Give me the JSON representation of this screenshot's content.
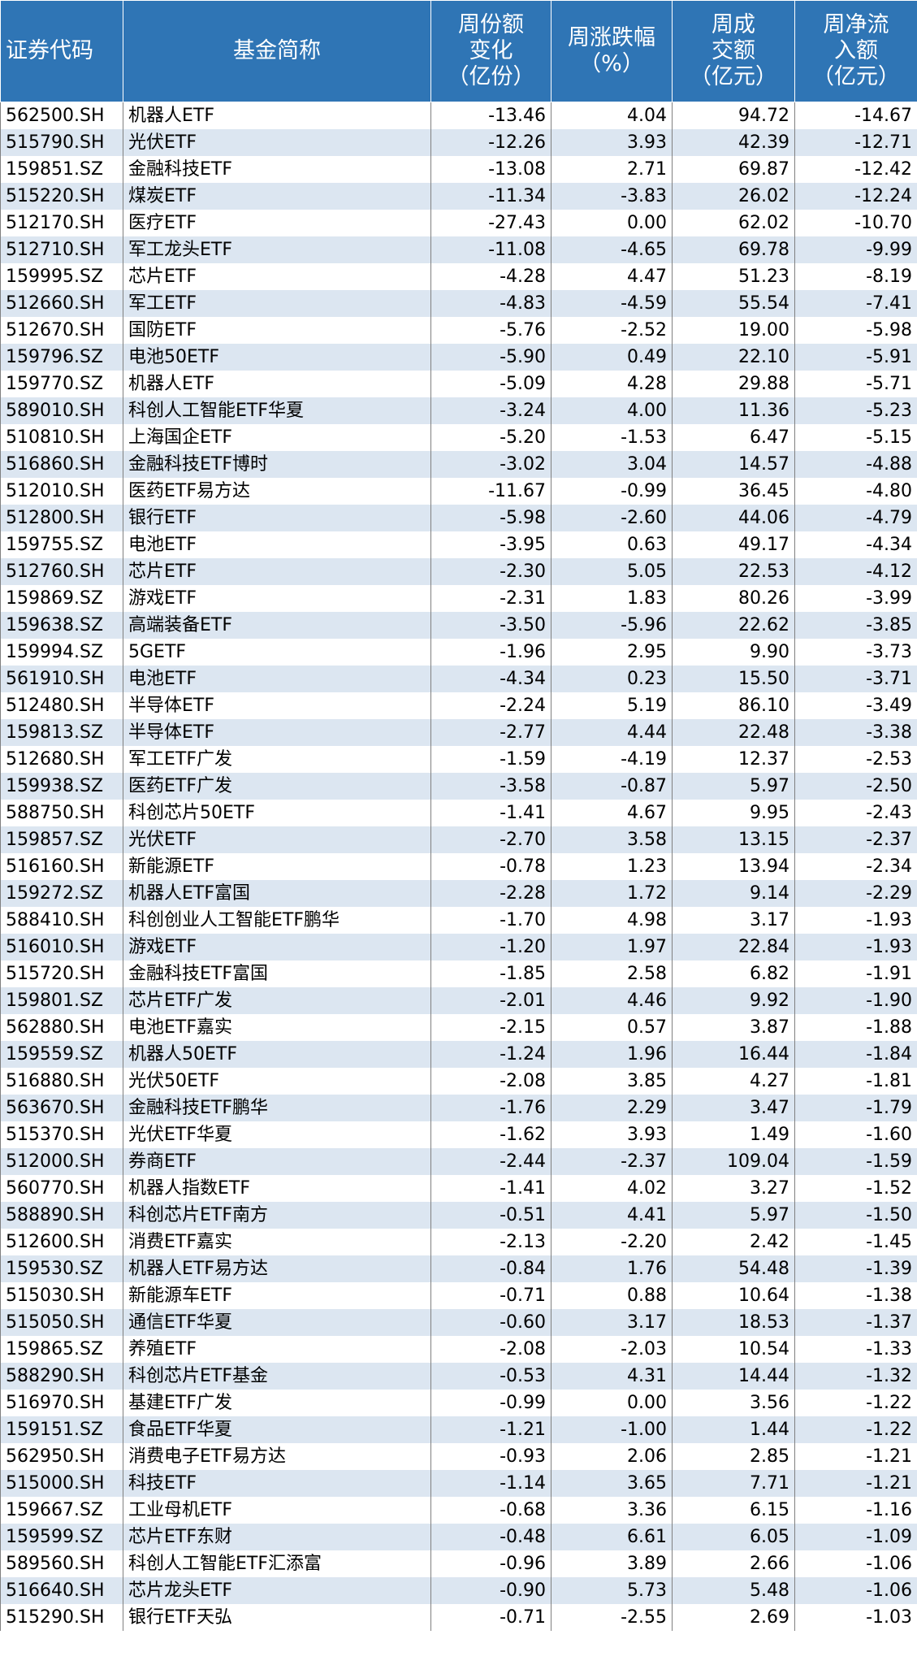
{
  "table": {
    "header": [
      [
        "证券代码"
      ],
      [
        "基金简称"
      ],
      [
        "周份额",
        "变化",
        "（亿份）"
      ],
      [
        "周涨跌幅",
        "（%）"
      ],
      [
        "周成",
        "交额",
        "（亿元）"
      ],
      [
        "周净流",
        "入额",
        "（亿元）"
      ]
    ],
    "rows": [
      [
        "562500.SH",
        "机器人ETF",
        "-13.46",
        "4.04",
        "94.72",
        "-14.67"
      ],
      [
        "515790.SH",
        "光伏ETF",
        "-12.26",
        "3.93",
        "42.39",
        "-12.71"
      ],
      [
        "159851.SZ",
        "金融科技ETF",
        "-13.08",
        "2.71",
        "69.87",
        "-12.42"
      ],
      [
        "515220.SH",
        "煤炭ETF",
        "-11.34",
        "-3.83",
        "26.02",
        "-12.24"
      ],
      [
        "512170.SH",
        "医疗ETF",
        "-27.43",
        "0.00",
        "62.02",
        "-10.70"
      ],
      [
        "512710.SH",
        "军工龙头ETF",
        "-11.08",
        "-4.65",
        "69.78",
        "-9.99"
      ],
      [
        "159995.SZ",
        "芯片ETF",
        "-4.28",
        "4.47",
        "51.23",
        "-8.19"
      ],
      [
        "512660.SH",
        "军工ETF",
        "-4.83",
        "-4.59",
        "55.54",
        "-7.41"
      ],
      [
        "512670.SH",
        "国防ETF",
        "-5.76",
        "-2.52",
        "19.00",
        "-5.98"
      ],
      [
        "159796.SZ",
        "电池50ETF",
        "-5.90",
        "0.49",
        "22.10",
        "-5.91"
      ],
      [
        "159770.SZ",
        "机器人ETF",
        "-5.09",
        "4.28",
        "29.88",
        "-5.71"
      ],
      [
        "589010.SH",
        "科创人工智能ETF华夏",
        "-3.24",
        "4.00",
        "11.36",
        "-5.23"
      ],
      [
        "510810.SH",
        "上海国企ETF",
        "-5.20",
        "-1.53",
        "6.47",
        "-5.15"
      ],
      [
        "516860.SH",
        "金融科技ETF博时",
        "-3.02",
        "3.04",
        "14.57",
        "-4.88"
      ],
      [
        "512010.SH",
        "医药ETF易方达",
        "-11.67",
        "-0.99",
        "36.45",
        "-4.80"
      ],
      [
        "512800.SH",
        "银行ETF",
        "-5.98",
        "-2.60",
        "44.06",
        "-4.79"
      ],
      [
        "159755.SZ",
        "电池ETF",
        "-3.95",
        "0.63",
        "49.17",
        "-4.34"
      ],
      [
        "512760.SH",
        "芯片ETF",
        "-2.30",
        "5.05",
        "22.53",
        "-4.12"
      ],
      [
        "159869.SZ",
        "游戏ETF",
        "-2.31",
        "1.83",
        "80.26",
        "-3.99"
      ],
      [
        "159638.SZ",
        "高端装备ETF",
        "-3.50",
        "-5.96",
        "22.62",
        "-3.85"
      ],
      [
        "159994.SZ",
        "5GETF",
        "-1.96",
        "2.95",
        "9.90",
        "-3.73"
      ],
      [
        "561910.SH",
        "电池ETF",
        "-4.34",
        "0.23",
        "15.50",
        "-3.71"
      ],
      [
        "512480.SH",
        "半导体ETF",
        "-2.24",
        "5.19",
        "86.10",
        "-3.49"
      ],
      [
        "159813.SZ",
        "半导体ETF",
        "-2.77",
        "4.44",
        "22.48",
        "-3.38"
      ],
      [
        "512680.SH",
        "军工ETF广发",
        "-1.59",
        "-4.19",
        "12.37",
        "-2.53"
      ],
      [
        "159938.SZ",
        "医药ETF广发",
        "-3.58",
        "-0.87",
        "5.97",
        "-2.50"
      ],
      [
        "588750.SH",
        "科创芯片50ETF",
        "-1.41",
        "4.67",
        "9.95",
        "-2.43"
      ],
      [
        "159857.SZ",
        "光伏ETF",
        "-2.70",
        "3.58",
        "13.15",
        "-2.37"
      ],
      [
        "516160.SH",
        "新能源ETF",
        "-0.78",
        "1.23",
        "13.94",
        "-2.34"
      ],
      [
        "159272.SZ",
        "机器人ETF富国",
        "-2.28",
        "1.72",
        "9.14",
        "-2.29"
      ],
      [
        "588410.SH",
        "科创创业人工智能ETF鹏华",
        "-1.70",
        "4.98",
        "3.17",
        "-1.93"
      ],
      [
        "516010.SH",
        "游戏ETF",
        "-1.20",
        "1.97",
        "22.84",
        "-1.93"
      ],
      [
        "515720.SH",
        "金融科技ETF富国",
        "-1.85",
        "2.58",
        "6.82",
        "-1.91"
      ],
      [
        "159801.SZ",
        "芯片ETF广发",
        "-2.01",
        "4.46",
        "9.92",
        "-1.90"
      ],
      [
        "562880.SH",
        "电池ETF嘉实",
        "-2.15",
        "0.57",
        "3.87",
        "-1.88"
      ],
      [
        "159559.SZ",
        "机器人50ETF",
        "-1.24",
        "1.96",
        "16.44",
        "-1.84"
      ],
      [
        "516880.SH",
        "光伏50ETF",
        "-2.08",
        "3.85",
        "4.27",
        "-1.81"
      ],
      [
        "563670.SH",
        "金融科技ETF鹏华",
        "-1.76",
        "2.29",
        "3.47",
        "-1.79"
      ],
      [
        "515370.SH",
        "光伏ETF华夏",
        "-1.62",
        "3.93",
        "1.49",
        "-1.60"
      ],
      [
        "512000.SH",
        "券商ETF",
        "-2.44",
        "-2.37",
        "109.04",
        "-1.59"
      ],
      [
        "560770.SH",
        "机器人指数ETF",
        "-1.41",
        "4.02",
        "3.27",
        "-1.52"
      ],
      [
        "588890.SH",
        "科创芯片ETF南方",
        "-0.51",
        "4.41",
        "5.97",
        "-1.50"
      ],
      [
        "512600.SH",
        "消费ETF嘉实",
        "-2.13",
        "-2.20",
        "2.42",
        "-1.45"
      ],
      [
        "159530.SZ",
        "机器人ETF易方达",
        "-0.84",
        "1.76",
        "54.48",
        "-1.39"
      ],
      [
        "515030.SH",
        "新能源车ETF",
        "-0.71",
        "0.88",
        "10.64",
        "-1.38"
      ],
      [
        "515050.SH",
        "通信ETF华夏",
        "-0.60",
        "3.17",
        "18.53",
        "-1.37"
      ],
      [
        "159865.SZ",
        "养殖ETF",
        "-2.08",
        "-2.03",
        "10.54",
        "-1.33"
      ],
      [
        "588290.SH",
        "科创芯片ETF基金",
        "-0.53",
        "4.31",
        "14.44",
        "-1.32"
      ],
      [
        "516970.SH",
        "基建ETF广发",
        "-0.99",
        "0.00",
        "3.56",
        "-1.22"
      ],
      [
        "159151.SZ",
        "食品ETF华夏",
        "-1.21",
        "-1.00",
        "1.44",
        "-1.22"
      ],
      [
        "562950.SH",
        "消费电子ETF易方达",
        "-0.93",
        "2.06",
        "2.85",
        "-1.21"
      ],
      [
        "515000.SH",
        "科技ETF",
        "-1.14",
        "3.65",
        "7.71",
        "-1.21"
      ],
      [
        "159667.SZ",
        "工业母机ETF",
        "-0.68",
        "3.36",
        "6.15",
        "-1.16"
      ],
      [
        "159599.SZ",
        "芯片ETF东财",
        "-0.48",
        "6.61",
        "6.05",
        "-1.09"
      ],
      [
        "589560.SH",
        "科创人工智能ETF汇添富",
        "-0.96",
        "3.89",
        "2.66",
        "-1.06"
      ],
      [
        "516640.SH",
        "芯片龙头ETF",
        "-0.90",
        "5.73",
        "5.48",
        "-1.06"
      ],
      [
        "515290.SH",
        "银行ETF天弘",
        "-0.71",
        "-2.55",
        "2.69",
        "-1.03"
      ]
    ]
  }
}
